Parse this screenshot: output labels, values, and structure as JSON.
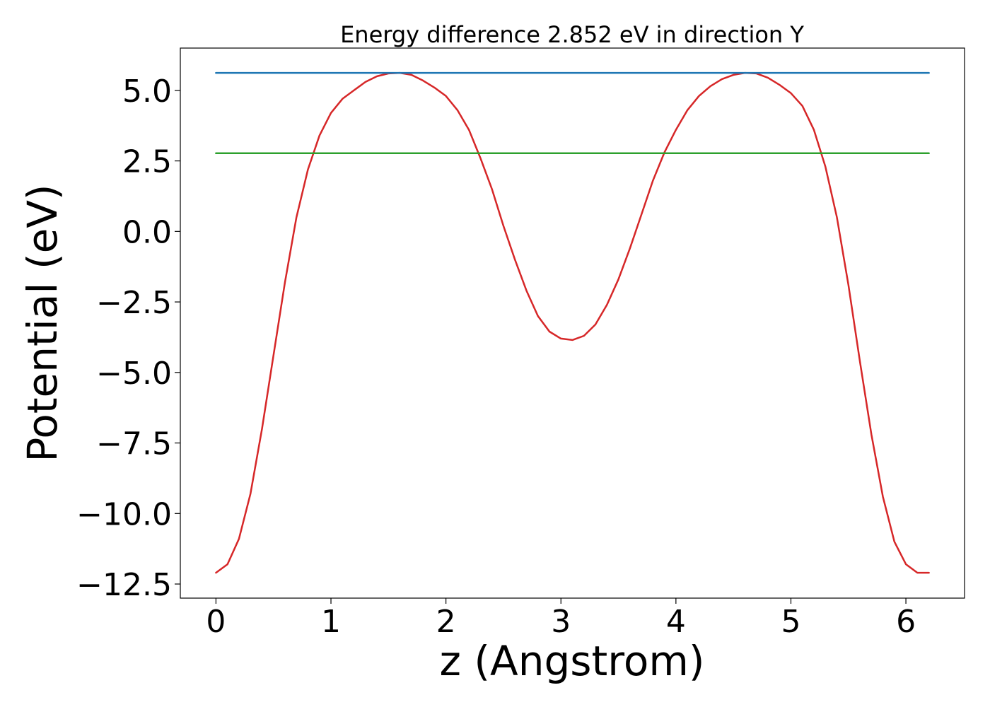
{
  "chart_data": {
    "type": "line",
    "title": "Energy difference 2.852 eV in direction Y",
    "xlabel": "z (Angstrom)",
    "ylabel": "Potential (eV)",
    "xlim": [
      -0.31,
      6.51
    ],
    "ylim": [
      -13.0,
      6.5
    ],
    "xticks": [
      0,
      1,
      2,
      3,
      4,
      5,
      6
    ],
    "xtick_labels": [
      "0",
      "1",
      "2",
      "3",
      "4",
      "5",
      "6"
    ],
    "yticks": [
      5.0,
      2.5,
      0.0,
      -2.5,
      -5.0,
      -7.5,
      -10.0,
      -12.5
    ],
    "ytick_labels": [
      "5.0",
      "2.5",
      "0.0",
      "−2.5",
      "−5.0",
      "−7.5",
      "−10.0",
      "−12.5"
    ],
    "grid": false,
    "legend": "none",
    "series": [
      {
        "color": "#d62728",
        "x": [
          0.0,
          0.1,
          0.2,
          0.3,
          0.4,
          0.5,
          0.6,
          0.7,
          0.8,
          0.9,
          1.0,
          1.1,
          1.2,
          1.3,
          1.4,
          1.5,
          1.6,
          1.7,
          1.8,
          1.9,
          2.0,
          2.1,
          2.2,
          2.3,
          2.4,
          2.5,
          2.6,
          2.7,
          2.8,
          2.9,
          3.0,
          3.1,
          3.2,
          3.3,
          3.4,
          3.5,
          3.6,
          3.7,
          3.8,
          3.9,
          4.0,
          4.1,
          4.2,
          4.3,
          4.4,
          4.5,
          4.6,
          4.7,
          4.8,
          4.9,
          5.0,
          5.1,
          5.2,
          5.3,
          5.4,
          5.5,
          5.6,
          5.7,
          5.8,
          5.9,
          6.0,
          6.1,
          6.2
        ],
        "y": [
          -12.1,
          -11.8,
          -10.9,
          -9.3,
          -7.0,
          -4.4,
          -1.8,
          0.5,
          2.2,
          3.4,
          4.2,
          4.7,
          5.0,
          5.3,
          5.5,
          5.6,
          5.62,
          5.55,
          5.35,
          5.1,
          4.8,
          4.3,
          3.6,
          2.6,
          1.5,
          0.2,
          -1.0,
          -2.1,
          -3.0,
          -3.55,
          -3.8,
          -3.85,
          -3.7,
          -3.3,
          -2.6,
          -1.7,
          -0.6,
          0.6,
          1.8,
          2.8,
          3.6,
          4.3,
          4.8,
          5.15,
          5.4,
          5.55,
          5.62,
          5.6,
          5.45,
          5.2,
          4.9,
          4.45,
          3.6,
          2.3,
          0.5,
          -1.9,
          -4.6,
          -7.2,
          -9.4,
          -11.0,
          -11.8,
          -12.1,
          -12.1
        ]
      },
      {
        "color": "#1f77b4",
        "x": [
          0.0,
          6.2
        ],
        "y": [
          5.62,
          5.62
        ]
      },
      {
        "color": "#2ca02c",
        "x": [
          0.0,
          6.2
        ],
        "y": [
          2.77,
          2.77
        ]
      }
    ]
  }
}
